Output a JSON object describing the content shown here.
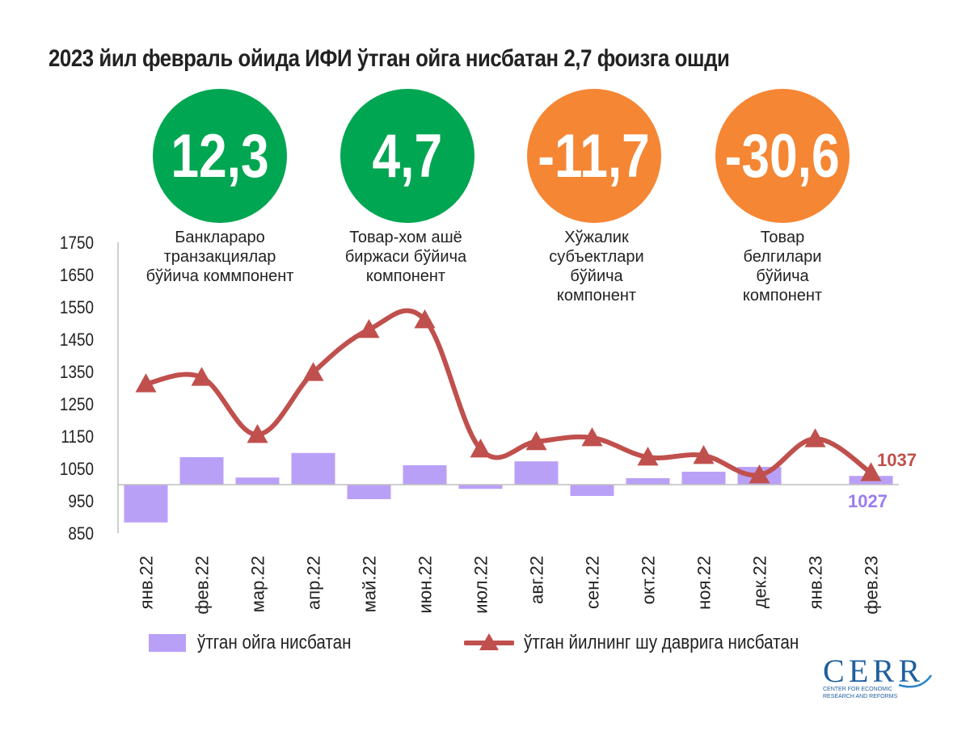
{
  "title": "2023 йил февраль ойида ИФИ ўтган ойга нисбатан 2,7 фоизга ошди",
  "components": [
    {
      "value": "12,3",
      "label": "Банклараро транзакциялар бўйича коммпонент",
      "color": "#00a651"
    },
    {
      "value": "4,7",
      "label": "Товар-хом ашё биржаси бўйича компонент",
      "color": "#00a651"
    },
    {
      "value": "-11,7",
      "label": "Хўжалик субъектлари бўйича компонент",
      "color": "#f58634"
    },
    {
      "value": "-30,6",
      "label": "Товар белгилари бўйича компонент",
      "color": "#f58634"
    }
  ],
  "chart_data": {
    "type": "bar+line",
    "categories": [
      "янв.22",
      "фев.22",
      "мар.22",
      "апр.22",
      "май.22",
      "июн.22",
      "июл.22",
      "авг.22",
      "сен.22",
      "окт.22",
      "ноя.22",
      "дек.22",
      "янв.23",
      "фев.23"
    ],
    "bar_baseline": 1000,
    "series": [
      {
        "name": "ўтган ойга нисбатан",
        "type": "bar",
        "color": "#b9a0f7",
        "values": [
          883,
          1085,
          1022,
          1098,
          955,
          1060,
          987,
          1072,
          965,
          1020,
          1040,
          1055,
          1000,
          1027
        ]
      },
      {
        "name": "ўтган йилнинг шу даврига нисбатан",
        "type": "line",
        "color": "#c0504d",
        "marker": "triangle",
        "values": [
          1312,
          1332,
          1155,
          1347,
          1480,
          1510,
          1110,
          1133,
          1145,
          1085,
          1090,
          1030,
          1142,
          1037
        ]
      }
    ],
    "ylim": [
      850,
      1750
    ],
    "yticks": [
      "1750",
      "1650",
      "1550",
      "1450",
      "1350",
      "1250",
      "1150",
      "1050",
      "950",
      "850"
    ],
    "data_labels": {
      "line_last": "1037",
      "bar_last": "1027"
    },
    "legend_position": "bottom"
  },
  "logo": {
    "text": "CERR",
    "sub1": "CENTER FOR ECONOMIC",
    "sub2": "RESEARCH AND REFORMS"
  }
}
